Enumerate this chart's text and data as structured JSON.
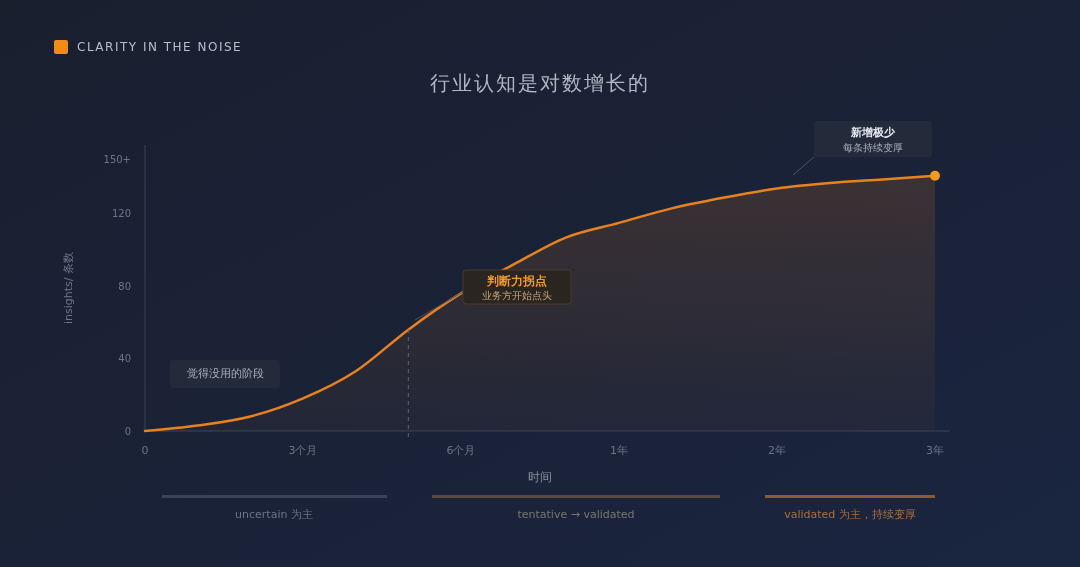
{
  "chart_data": {
    "type": "area",
    "title": "行业认知是对数增长的",
    "subtitle": "CLARITY IN THE NOISE",
    "xlabel": "时间",
    "ylabel": "insights/ 条数",
    "categories": [
      "0",
      null,
      null,
      "3个月",
      null,
      null,
      "6个月",
      null,
      null,
      "1年",
      null,
      null,
      "2年",
      null,
      null,
      "3年"
    ],
    "series": [
      {
        "color": "#e8821e",
        "values": [
          0,
          3,
          8,
          18,
          33,
          56,
          76,
          92,
          107,
          115,
          123,
          129,
          134,
          137,
          139,
          141
        ]
      },
      {
        "type": "scatter",
        "color": "#f39a1e",
        "x": [
          "3年"
        ],
        "values": [
          141
        ]
      }
    ],
    "ylim": [
      0,
      158
    ],
    "yticks": [
      0,
      40,
      80,
      120,
      {
        "value": 150,
        "label": "150+"
      }
    ],
    "annotations": [
      "觉得没用的阶段",
      "判断力拐点",
      "业务方开始点头",
      "新增极少",
      "每条持续变厚",
      "uncertain 为主",
      "tentative → validated",
      "validated 为主，持续变厚"
    ]
  }
}
